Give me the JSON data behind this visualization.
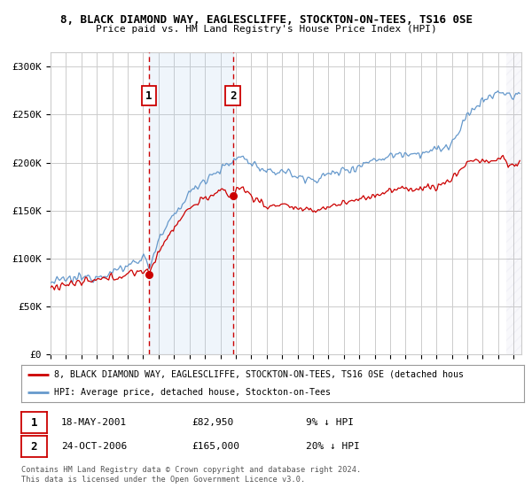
{
  "title1": "8, BLACK DIAMOND WAY, EAGLESCLIFFE, STOCKTON-ON-TEES, TS16 0SE",
  "title2": "Price paid vs. HM Land Registry's House Price Index (HPI)",
  "ylabel_ticks": [
    "£0",
    "£50K",
    "£100K",
    "£150K",
    "£200K",
    "£250K",
    "£300K"
  ],
  "ytick_vals": [
    0,
    50000,
    100000,
    150000,
    200000,
    250000,
    300000
  ],
  "ylim": [
    0,
    315000
  ],
  "xlim_start": 1995.0,
  "xlim_end": 2025.5,
  "sale1_date": 2001.37,
  "sale1_price": 82950,
  "sale1_label": "1",
  "sale1_text": "18-MAY-2001",
  "sale1_amount": "£82,950",
  "sale1_hpi": "9% ↓ HPI",
  "sale2_date": 2006.81,
  "sale2_price": 165000,
  "sale2_label": "2",
  "sale2_text": "24-OCT-2006",
  "sale2_amount": "£165,000",
  "sale2_hpi": "20% ↓ HPI",
  "hpi_color": "#6699cc",
  "sale_color": "#cc0000",
  "shade_color": "#ddeeff",
  "vline_color": "#cc0000",
  "legend1": "8, BLACK DIAMOND WAY, EAGLESCLIFFE, STOCKTON-ON-TEES, TS16 0SE (detached hous",
  "legend2": "HPI: Average price, detached house, Stockton-on-Tees",
  "footnote": "Contains HM Land Registry data © Crown copyright and database right 2024.\nThis data is licensed under the Open Government Licence v3.0.",
  "grid_color": "#cccccc",
  "background_color": "#ffffff"
}
